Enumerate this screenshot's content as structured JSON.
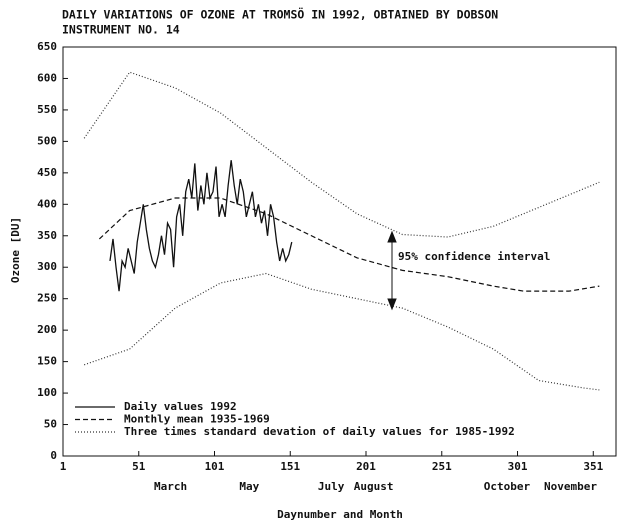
{
  "chart_data": {
    "type": "line",
    "title_lines": [
      "DAILY VARIATIONS OF OZONE AT TROMSÖ IN 1992, OBTAINED BY DOBSON",
      "INSTRUMENT  NO. 14"
    ],
    "x_label": "Daynumber and Month",
    "y_label": "Ozone [DU]",
    "annotation": "95% confidence interval",
    "xlim": [
      1,
      366
    ],
    "ylim": [
      0,
      650
    ],
    "xticks": [
      1,
      51,
      101,
      151,
      201,
      251,
      301,
      351
    ],
    "yticks": [
      0,
      50,
      100,
      150,
      200,
      250,
      300,
      350,
      400,
      450,
      500,
      550,
      600,
      650
    ],
    "month_labels": [
      {
        "value": 72,
        "label": "March"
      },
      {
        "value": 124,
        "label": "May"
      },
      {
        "value": 178,
        "label": "July"
      },
      {
        "value": 206,
        "label": "August"
      },
      {
        "value": 294,
        "label": "October"
      },
      {
        "value": 336,
        "label": "November"
      }
    ],
    "series": [
      {
        "name": "Daily values 1992",
        "color": "#111",
        "dash": "solid",
        "x": [
          32,
          34,
          36,
          38,
          40,
          42,
          44,
          46,
          48,
          50,
          52,
          54,
          56,
          58,
          60,
          62,
          64,
          66,
          68,
          70,
          72,
          74,
          76,
          78,
          80,
          82,
          84,
          86,
          88,
          90,
          92,
          94,
          96,
          98,
          100,
          102,
          104,
          106,
          108,
          110,
          112,
          114,
          116,
          118,
          120,
          122,
          124,
          126,
          128,
          130,
          132,
          134,
          136,
          138,
          140,
          142,
          144,
          146,
          148,
          150,
          152
        ],
        "values": [
          310,
          345,
          300,
          262,
          310,
          300,
          330,
          310,
          290,
          340,
          370,
          400,
          360,
          330,
          310,
          300,
          320,
          350,
          320,
          370,
          360,
          300,
          380,
          400,
          350,
          420,
          440,
          410,
          465,
          390,
          430,
          400,
          450,
          410,
          420,
          460,
          380,
          400,
          380,
          430,
          470,
          430,
          400,
          440,
          420,
          380,
          400,
          420,
          380,
          400,
          370,
          390,
          350,
          400,
          380,
          340,
          310,
          330,
          310,
          320,
          340
        ]
      },
      {
        "name": "Monthly mean 1935-1969",
        "color": "#111",
        "dash": "dashed",
        "x": [
          25,
          45,
          75,
          105,
          135,
          165,
          195,
          225,
          255,
          285,
          305,
          335,
          355
        ],
        "values": [
          345,
          390,
          410,
          410,
          385,
          350,
          315,
          295,
          285,
          270,
          262,
          262,
          270
        ]
      },
      {
        "name": "Three times standard devation of daily values for 1985-1992",
        "color": "#333",
        "dash": "dotted",
        "x": [
          15,
          45,
          75,
          105,
          135,
          165,
          195,
          225,
          255,
          285,
          315,
          345,
          355
        ],
        "values": [
          505,
          610,
          585,
          545,
          490,
          435,
          385,
          352,
          348,
          365,
          395,
          425,
          435
        ]
      },
      {
        "color": "#333",
        "dash": "dotted",
        "x": [
          15,
          45,
          75,
          105,
          135,
          165,
          195,
          225,
          255,
          285,
          315,
          345,
          355
        ],
        "values": [
          145,
          170,
          235,
          275,
          290,
          265,
          250,
          235,
          205,
          170,
          120,
          108,
          105
        ]
      }
    ]
  }
}
